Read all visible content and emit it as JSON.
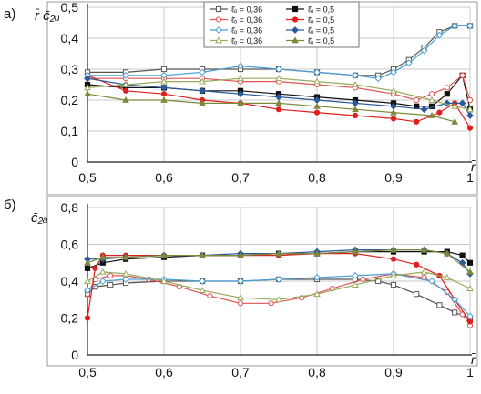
{
  "chart_data": [
    {
      "type": "line",
      "panel_label": "а)",
      "ylabel": "r̄ c̄₂ᵤ",
      "xlabel": "r̄",
      "xlim": [
        0.5,
        1.0
      ],
      "ylim": [
        0,
        0.5
      ],
      "x_ticks": [
        "0,5",
        "0,6",
        "0,7",
        "0,8",
        "0,9",
        "1"
      ],
      "y_ticks": [
        "0",
        "0,1",
        "0,2",
        "0,3",
        "0,4",
        "0,5"
      ],
      "grid": true,
      "legend_position": "top-center",
      "legend": [
        {
          "label": "ℓ̄ₒ = 0,36",
          "color": "#555555",
          "marker": "open-square"
        },
        {
          "label": "ℓ̄ₒ = 0,5",
          "color": "#111111",
          "marker": "filled-square"
        },
        {
          "label": "ℓ̄ₒ = 0,36",
          "color": "#e05555",
          "marker": "open-circle"
        },
        {
          "label": "ℓ̄ₒ = 0,5",
          "color": "#e02020",
          "marker": "filled-circle"
        },
        {
          "label": "ℓ̄ₒ = 0,36",
          "color": "#4a9fd4",
          "marker": "open-diamond"
        },
        {
          "label": "ℓ̄ₒ = 0,5",
          "color": "#2a5a9a",
          "marker": "filled-diamond"
        },
        {
          "label": "ℓ̄ₒ = 0,36",
          "color": "#9aaa5a",
          "marker": "open-triangle"
        },
        {
          "label": "ℓ̄ₒ = 0,5",
          "color": "#7a8a3a",
          "marker": "filled-triangle"
        }
      ],
      "series": [
        {
          "color": "#555555",
          "marker": "open-square",
          "x": [
            0.5,
            0.55,
            0.6,
            0.65,
            0.7,
            0.75,
            0.8,
            0.85,
            0.88,
            0.9,
            0.92,
            0.94,
            0.96,
            0.98,
            1.0
          ],
          "y": [
            0.29,
            0.29,
            0.3,
            0.3,
            0.3,
            0.3,
            0.29,
            0.28,
            0.28,
            0.3,
            0.33,
            0.37,
            0.42,
            0.44,
            0.44
          ]
        },
        {
          "color": "#111111",
          "marker": "filled-square",
          "x": [
            0.5,
            0.55,
            0.6,
            0.65,
            0.7,
            0.75,
            0.8,
            0.85,
            0.9,
            0.93,
            0.95,
            0.97,
            0.99,
            1.0
          ],
          "y": [
            0.25,
            0.24,
            0.24,
            0.23,
            0.23,
            0.22,
            0.21,
            0.2,
            0.19,
            0.18,
            0.18,
            0.22,
            0.28,
            0.17
          ]
        },
        {
          "color": "#e05555",
          "marker": "open-circle",
          "x": [
            0.5,
            0.55,
            0.6,
            0.65,
            0.7,
            0.75,
            0.8,
            0.85,
            0.9,
            0.93,
            0.95,
            0.97,
            0.99,
            1.0
          ],
          "y": [
            0.27,
            0.27,
            0.27,
            0.27,
            0.26,
            0.26,
            0.25,
            0.24,
            0.22,
            0.2,
            0.22,
            0.24,
            0.28,
            0.2
          ]
        },
        {
          "color": "#e02020",
          "marker": "filled-circle",
          "x": [
            0.5,
            0.55,
            0.6,
            0.65,
            0.7,
            0.75,
            0.8,
            0.85,
            0.9,
            0.93,
            0.96,
            0.98,
            1.0
          ],
          "y": [
            0.28,
            0.23,
            0.22,
            0.2,
            0.19,
            0.17,
            0.16,
            0.15,
            0.14,
            0.13,
            0.16,
            0.19,
            0.11
          ]
        },
        {
          "color": "#4a9fd4",
          "marker": "open-diamond",
          "x": [
            0.5,
            0.55,
            0.6,
            0.65,
            0.7,
            0.75,
            0.8,
            0.85,
            0.88,
            0.9,
            0.92,
            0.94,
            0.96,
            0.98,
            1.0
          ],
          "y": [
            0.28,
            0.28,
            0.28,
            0.29,
            0.31,
            0.3,
            0.29,
            0.28,
            0.27,
            0.29,
            0.32,
            0.36,
            0.41,
            0.44,
            0.44
          ]
        },
        {
          "color": "#2a5a9a",
          "marker": "filled-diamond",
          "x": [
            0.5,
            0.55,
            0.6,
            0.65,
            0.7,
            0.75,
            0.8,
            0.85,
            0.9,
            0.94,
            0.97,
            0.99,
            1.0
          ],
          "y": [
            0.27,
            0.25,
            0.24,
            0.23,
            0.22,
            0.21,
            0.2,
            0.19,
            0.18,
            0.17,
            0.19,
            0.19,
            0.15
          ]
        },
        {
          "color": "#9aaa5a",
          "marker": "open-triangle",
          "x": [
            0.5,
            0.55,
            0.6,
            0.65,
            0.7,
            0.75,
            0.8,
            0.85,
            0.9,
            0.95,
            0.98,
            1.0
          ],
          "y": [
            0.24,
            0.25,
            0.26,
            0.26,
            0.27,
            0.27,
            0.26,
            0.25,
            0.23,
            0.2,
            0.18,
            0.17
          ]
        },
        {
          "color": "#7a8a3a",
          "marker": "filled-triangle",
          "x": [
            0.5,
            0.55,
            0.6,
            0.65,
            0.7,
            0.75,
            0.8,
            0.85,
            0.9,
            0.95,
            0.98
          ],
          "y": [
            0.22,
            0.2,
            0.2,
            0.19,
            0.19,
            0.19,
            0.18,
            0.17,
            0.16,
            0.15,
            0.13
          ]
        }
      ]
    },
    {
      "type": "line",
      "panel_label": "б)",
      "ylabel": "c̄₂ₐ",
      "xlabel": "r̄",
      "xlim": [
        0.5,
        1.0
      ],
      "ylim": [
        0,
        0.8
      ],
      "x_ticks": [
        "0,5",
        "0,6",
        "0,7",
        "0,8",
        "0,9",
        "1"
      ],
      "y_ticks": [
        "0",
        "0,2",
        "0,4",
        "0,6",
        "0,8"
      ],
      "grid": true,
      "series": [
        {
          "color": "#555555",
          "marker": "open-square",
          "x": [
            0.5,
            0.51,
            0.53,
            0.55,
            0.6,
            0.65,
            0.7,
            0.75,
            0.8,
            0.85,
            0.88,
            0.9,
            0.93,
            0.96,
            0.98,
            1.0
          ],
          "y": [
            0.33,
            0.37,
            0.38,
            0.39,
            0.4,
            0.4,
            0.4,
            0.41,
            0.41,
            0.41,
            0.4,
            0.38,
            0.33,
            0.27,
            0.23,
            0.2
          ]
        },
        {
          "color": "#111111",
          "marker": "filled-square",
          "x": [
            0.5,
            0.52,
            0.55,
            0.6,
            0.65,
            0.7,
            0.75,
            0.8,
            0.85,
            0.9,
            0.94,
            0.97,
            0.99,
            1.0
          ],
          "y": [
            0.47,
            0.5,
            0.52,
            0.53,
            0.54,
            0.54,
            0.55,
            0.55,
            0.56,
            0.56,
            0.56,
            0.56,
            0.54,
            0.5
          ]
        },
        {
          "color": "#e05555",
          "marker": "open-circle",
          "x": [
            0.5,
            0.51,
            0.53,
            0.55,
            0.58,
            0.62,
            0.66,
            0.7,
            0.74,
            0.78,
            0.82,
            0.86,
            0.9,
            0.94,
            0.97,
            0.99,
            1.0
          ],
          "y": [
            0.33,
            0.41,
            0.43,
            0.43,
            0.41,
            0.37,
            0.32,
            0.28,
            0.28,
            0.31,
            0.36,
            0.41,
            0.44,
            0.42,
            0.34,
            0.22,
            0.16
          ]
        },
        {
          "color": "#e02020",
          "marker": "filled-circle",
          "x": [
            0.5,
            0.51,
            0.52,
            0.55,
            0.6,
            0.65,
            0.7,
            0.75,
            0.8,
            0.85,
            0.9,
            0.93,
            0.96,
            0.98,
            1.0
          ],
          "y": [
            0.2,
            0.47,
            0.54,
            0.54,
            0.54,
            0.54,
            0.54,
            0.54,
            0.55,
            0.55,
            0.52,
            0.49,
            0.43,
            0.3,
            0.18
          ]
        },
        {
          "color": "#4a9fd4",
          "marker": "open-diamond",
          "x": [
            0.5,
            0.52,
            0.55,
            0.6,
            0.65,
            0.7,
            0.75,
            0.8,
            0.85,
            0.9,
            0.95,
            0.98,
            1.0
          ],
          "y": [
            0.35,
            0.4,
            0.41,
            0.41,
            0.4,
            0.4,
            0.41,
            0.42,
            0.43,
            0.44,
            0.4,
            0.3,
            0.21
          ]
        },
        {
          "color": "#2a5a9a",
          "marker": "filled-diamond",
          "x": [
            0.5,
            0.52,
            0.55,
            0.6,
            0.65,
            0.7,
            0.75,
            0.8,
            0.85,
            0.9,
            0.94,
            0.97,
            0.99,
            1.0
          ],
          "y": [
            0.52,
            0.52,
            0.53,
            0.54,
            0.54,
            0.55,
            0.55,
            0.56,
            0.57,
            0.57,
            0.57,
            0.55,
            0.5,
            0.44
          ]
        },
        {
          "color": "#9aaa5a",
          "marker": "open-triangle",
          "x": [
            0.5,
            0.52,
            0.55,
            0.6,
            0.65,
            0.7,
            0.75,
            0.8,
            0.85,
            0.9,
            0.94,
            0.97,
            1.0
          ],
          "y": [
            0.4,
            0.45,
            0.44,
            0.4,
            0.35,
            0.31,
            0.3,
            0.33,
            0.38,
            0.43,
            0.45,
            0.42,
            0.36
          ]
        },
        {
          "color": "#7a8a3a",
          "marker": "filled-triangle",
          "x": [
            0.5,
            0.52,
            0.55,
            0.6,
            0.65,
            0.7,
            0.75,
            0.8,
            0.85,
            0.9,
            0.94,
            0.97,
            1.0
          ],
          "y": [
            0.5,
            0.53,
            0.53,
            0.54,
            0.54,
            0.54,
            0.55,
            0.55,
            0.56,
            0.57,
            0.57,
            0.55,
            0.45
          ]
        }
      ]
    }
  ]
}
